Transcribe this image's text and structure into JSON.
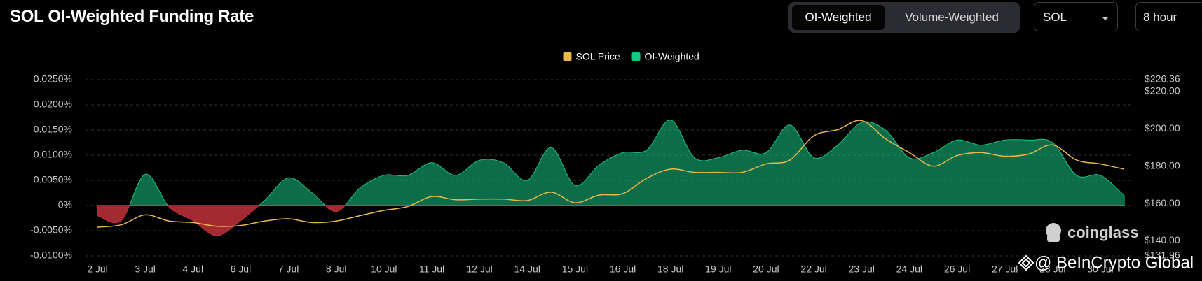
{
  "header": {
    "title": "SOL OI-Weighted Funding Rate",
    "tabs": [
      "OI-Weighted",
      "Volume-Weighted"
    ],
    "selects": [
      "SOL",
      "8 hour"
    ]
  },
  "watermarks": [
    "coinglass",
    "@ BeInCrypto Global"
  ],
  "chart_data": {
    "type": "area",
    "categories": [
      "2 Jul",
      null,
      "3 Jul",
      null,
      "4 Jul",
      null,
      "6 Jul",
      null,
      "7 Jul",
      null,
      "8 Jul",
      null,
      "10 Jul",
      null,
      "11 Jul",
      null,
      "12 Jul",
      null,
      "14 Jul",
      null,
      "15 Jul",
      null,
      "16 Jul",
      null,
      "18 Jul",
      null,
      "19 Jul",
      null,
      "20 Jul",
      null,
      "22 Jul",
      null,
      "23 Jul",
      null,
      "24 Jul",
      null,
      "26 Jul",
      null,
      "27 Jul",
      null,
      "28 Jul",
      null,
      "30 Jul",
      null
    ],
    "series": [
      {
        "name": "SOL Price",
        "type": "line",
        "axis": "y2",
        "color": "#e8b84a",
        "values": [
          147.3,
          148.6,
          153.9,
          150.6,
          149.8,
          147.8,
          148.2,
          150.6,
          151.8,
          149.8,
          150.6,
          153.5,
          156.3,
          158.4,
          163.7,
          162.0,
          162.4,
          162.4,
          161.6,
          166.1,
          160.4,
          164.5,
          165.3,
          173.5,
          178.4,
          176.7,
          176.7,
          176.7,
          181.2,
          183.3,
          196.3,
          199.6,
          204.5,
          194.7,
          187.3,
          180.0,
          185.7,
          187.3,
          185.3,
          186.5,
          191.4,
          183.3,
          181.2,
          178.4
        ]
      },
      {
        "name": "OI-Weighted",
        "type": "area",
        "color": "#16c784",
        "negative_color": "#c0313a",
        "values": [
          -0.002,
          -0.003,
          0.0062,
          -0.0003,
          -0.003,
          -0.006,
          -0.003,
          0.001,
          0.0055,
          0.0025,
          -0.0012,
          0.0035,
          0.006,
          0.006,
          0.0085,
          0.006,
          0.009,
          0.0085,
          0.005,
          0.0115,
          0.004,
          0.008,
          0.0105,
          0.011,
          0.017,
          0.0095,
          0.0095,
          0.011,
          0.0105,
          0.016,
          0.0095,
          0.012,
          0.0165,
          0.015,
          0.0095,
          0.0105,
          0.013,
          0.012,
          0.013,
          0.013,
          0.0125,
          0.006,
          0.006,
          0.002
        ]
      }
    ],
    "ylim": [
      -0.01,
      0.025
    ],
    "yticks": [
      {
        "value": -0.01,
        "label": "-0.0100%"
      },
      {
        "value": -0.005,
        "label": "-0.0050%"
      },
      {
        "value": 0,
        "label": "0%"
      },
      {
        "value": 0.005,
        "label": "0.0050%"
      },
      {
        "value": 0.01,
        "label": "0.0100%"
      },
      {
        "value": 0.015,
        "label": "0.0150%"
      },
      {
        "value": 0.02,
        "label": "0.0200%"
      },
      {
        "value": 0.025,
        "label": "0.0250%"
      }
    ],
    "y2lim": [
      131.96,
      226.36
    ],
    "y2ticks": [
      {
        "value": 131.96,
        "label": "$131.96"
      },
      {
        "value": 140,
        "label": "$140.00"
      },
      {
        "value": 160,
        "label": "$160.00"
      },
      {
        "value": 180,
        "label": "$180.00"
      },
      {
        "value": 200,
        "label": "$200.00"
      },
      {
        "value": 220,
        "label": "$220.00"
      },
      {
        "value": 226.36,
        "label": "$226.36"
      }
    ],
    "grid": true,
    "legend": "top"
  }
}
